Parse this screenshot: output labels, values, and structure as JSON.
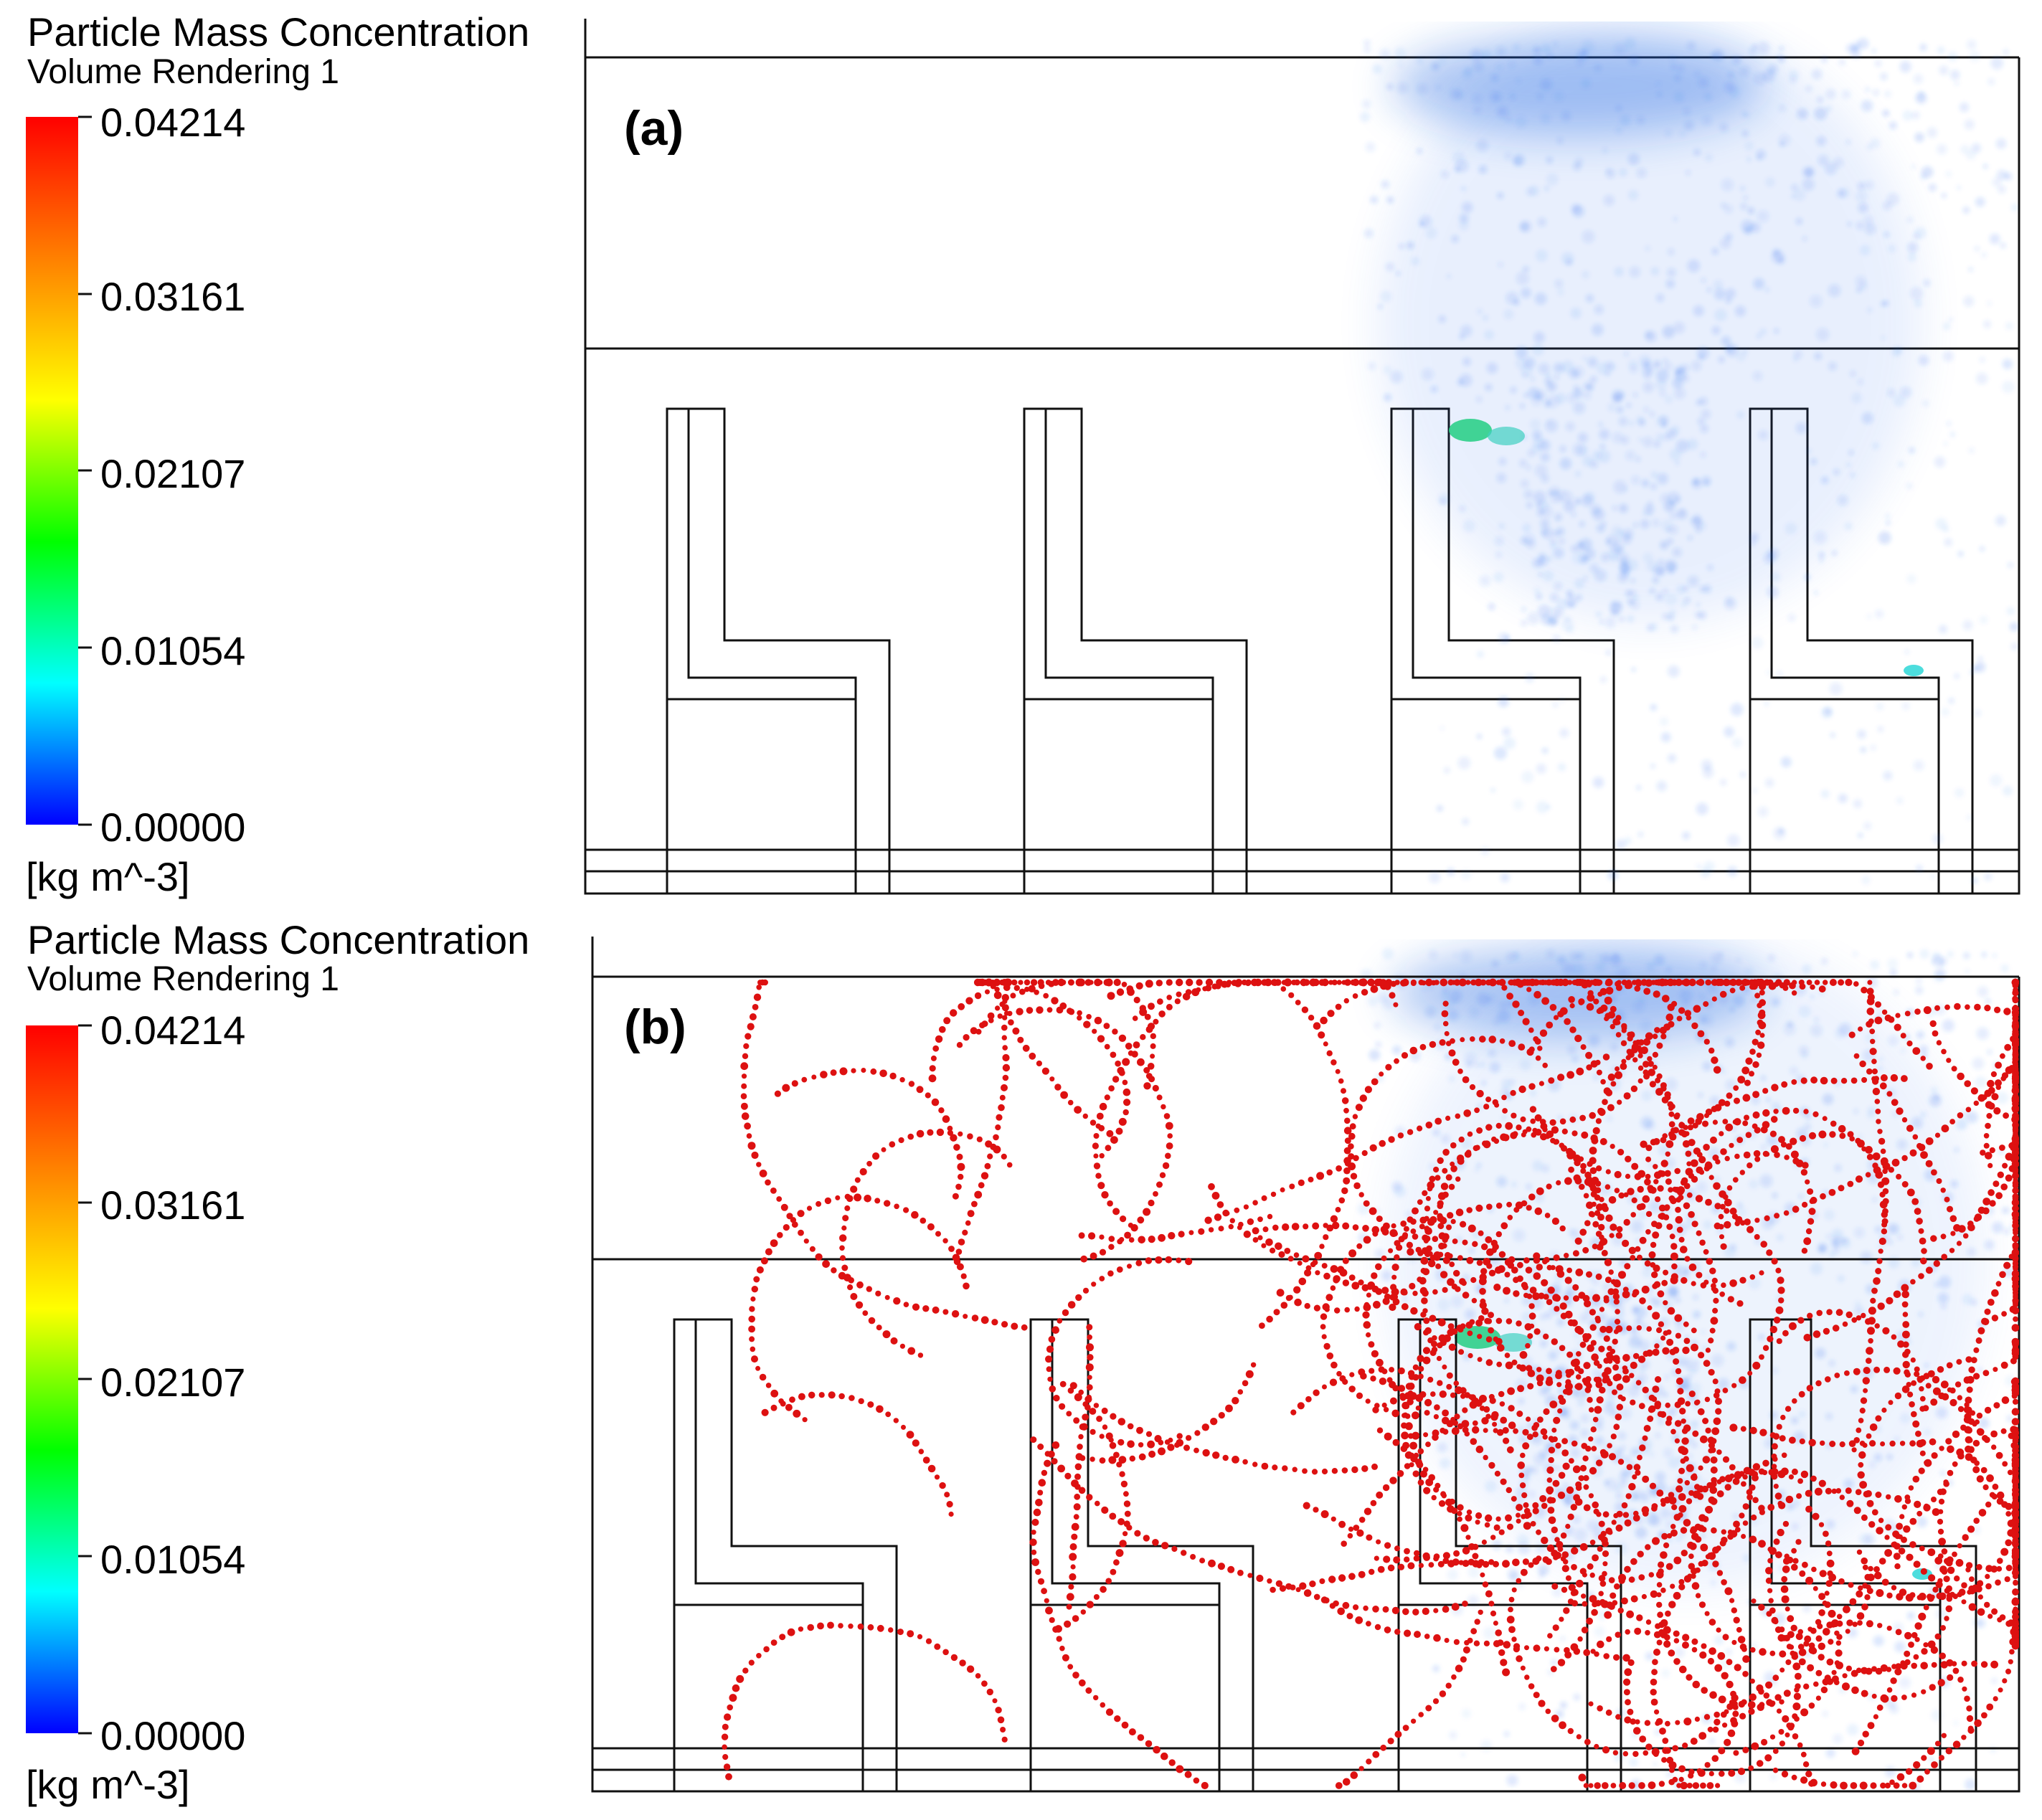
{
  "colors": {
    "colorbar_stops": [
      "#ff0000",
      "#ff8000",
      "#ffff00",
      "#00ff00",
      "#00ffff",
      "#0000ff"
    ],
    "haze": "#2a6df0",
    "haze_dense": "#1560e0",
    "deposit": "#2ecf8a",
    "trajectory_particles": "#dd1111",
    "geometry_lines": "#111111"
  },
  "panels": [
    {
      "id": "a",
      "panel_label": "(a)",
      "legend": {
        "title": "Particle Mass Concentration",
        "subtitle": "Volume Rendering 1",
        "ticks": [
          "0.04214",
          "0.03161",
          "0.02107",
          "0.01054",
          "0.00000"
        ],
        "unit": "[kg m^-3]"
      },
      "shows_red_trajectories": false
    },
    {
      "id": "b",
      "panel_label": "(b)",
      "legend": {
        "title": "Particle Mass Concentration",
        "subtitle": "Volume Rendering 1",
        "ticks": [
          "0.04214",
          "0.03161",
          "0.02107",
          "0.01054",
          "0.00000"
        ],
        "unit": "[kg m^-3]"
      },
      "shows_red_trajectories": true
    }
  ]
}
